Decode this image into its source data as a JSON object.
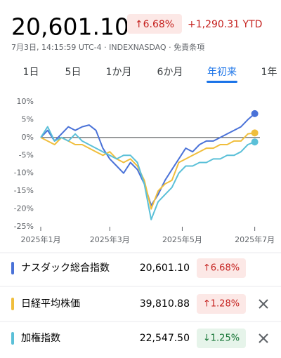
{
  "header": {
    "price": "20,601.10",
    "change": "↑6.68%",
    "ytd": "+1,290.31 YTD",
    "meta": "7月3日, 14:15:59 UTC-4 · INDEXNASDAQ · 免責条項"
  },
  "tabs": [
    "1日",
    "5日",
    "1か月",
    "6か月",
    "年初来",
    "1年"
  ],
  "selected_tab": 4,
  "chart_data": {
    "type": "line",
    "x": [
      0,
      4,
      8,
      12,
      16,
      20,
      24,
      28,
      32,
      36,
      40,
      44,
      48,
      52,
      56,
      60,
      64,
      68,
      72,
      76,
      80,
      84,
      88,
      92,
      96,
      100,
      104,
      108,
      112,
      116,
      120,
      124
    ],
    "xlim": [
      0,
      127
    ],
    "xticks": [
      {
        "value": 0,
        "label": "2025年1月"
      },
      {
        "value": 40,
        "label": "2025年3月"
      },
      {
        "value": 82,
        "label": "2025年5月"
      },
      {
        "value": 124,
        "label": "2025年7月"
      }
    ],
    "ylim": [
      -25,
      10
    ],
    "yticks": [
      {
        "value": 10,
        "label": "10%"
      },
      {
        "value": 5,
        "label": "5%"
      },
      {
        "value": 0,
        "label": "0%"
      },
      {
        "value": -5,
        "label": "-5%"
      },
      {
        "value": -10,
        "label": "-10%"
      },
      {
        "value": -15,
        "label": "-15%"
      },
      {
        "value": -20,
        "label": "-20%"
      },
      {
        "value": -25,
        "label": "-25%"
      }
    ],
    "series": [
      {
        "name": "ナスダック総合指数",
        "color": "#4a72d8",
        "values": [
          0,
          2,
          -1,
          1,
          3,
          2,
          3,
          3.5,
          2,
          -3,
          -6,
          -8,
          -10,
          -7,
          -9,
          -13,
          -19,
          -16,
          -12,
          -9,
          -6,
          -3,
          -4,
          -2,
          -1,
          -1,
          0,
          1,
          2,
          3,
          5,
          6.68
        ]
      },
      {
        "name": "日経平均株価",
        "color": "#f0be3c",
        "values": [
          0,
          -1,
          -2,
          0,
          -1,
          -2,
          -2,
          -3,
          -4,
          -5,
          -4,
          -6,
          -7,
          -6,
          -8,
          -12,
          -20,
          -15,
          -13,
          -12,
          -7,
          -6,
          -5,
          -4,
          -3,
          -3,
          -2,
          -2,
          -1,
          -1,
          1,
          1.28
        ]
      },
      {
        "name": "加権指数",
        "color": "#5bc0d8",
        "values": [
          0,
          3,
          -1,
          0,
          -1,
          1,
          -1,
          -2,
          -3,
          -4,
          -5,
          -6,
          -5,
          -5,
          -7,
          -13,
          -23,
          -18,
          -16,
          -14,
          -10,
          -8,
          -8,
          -7,
          -7,
          -6,
          -6,
          -5,
          -5,
          -4,
          -2,
          -1.25
        ]
      }
    ]
  },
  "quotes": [
    {
      "value": "20,601.10",
      "change": "↑6.68%"
    },
    {
      "value": "39,810.88",
      "change": "↑1.28%"
    },
    {
      "value": "22,547.50",
      "change": "↓1.25%"
    }
  ]
}
